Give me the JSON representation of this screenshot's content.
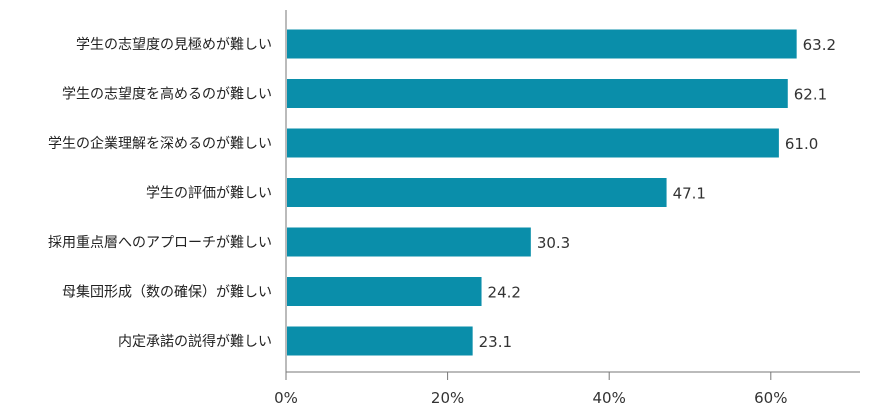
{
  "chart_data": {
    "type": "bar",
    "orientation": "horizontal",
    "categories": [
      "学生の志望度の見極めが難しい",
      "学生の志望度を高めるのが難しい",
      "学生の企業理解を深めるのが難しい",
      "学生の評価が難しい",
      "採用重点層へのアプローチが難しい",
      "母集団形成（数の確保）が難しい",
      "内定承諾の説得が難しい"
    ],
    "values": [
      63.2,
      62.1,
      61.0,
      47.1,
      30.3,
      24.2,
      23.1
    ],
    "value_labels": [
      "63.2",
      "62.1",
      "61.0",
      "47.1",
      "30.3",
      "24.2",
      "23.1"
    ],
    "xlim": [
      0,
      70
    ],
    "x_ticks": [
      0,
      20,
      40,
      60
    ],
    "x_tick_labels": [
      "0%",
      "20%",
      "40%",
      "60%"
    ],
    "bar_color": "#0a8eaa",
    "grid": false,
    "legend": "none"
  }
}
